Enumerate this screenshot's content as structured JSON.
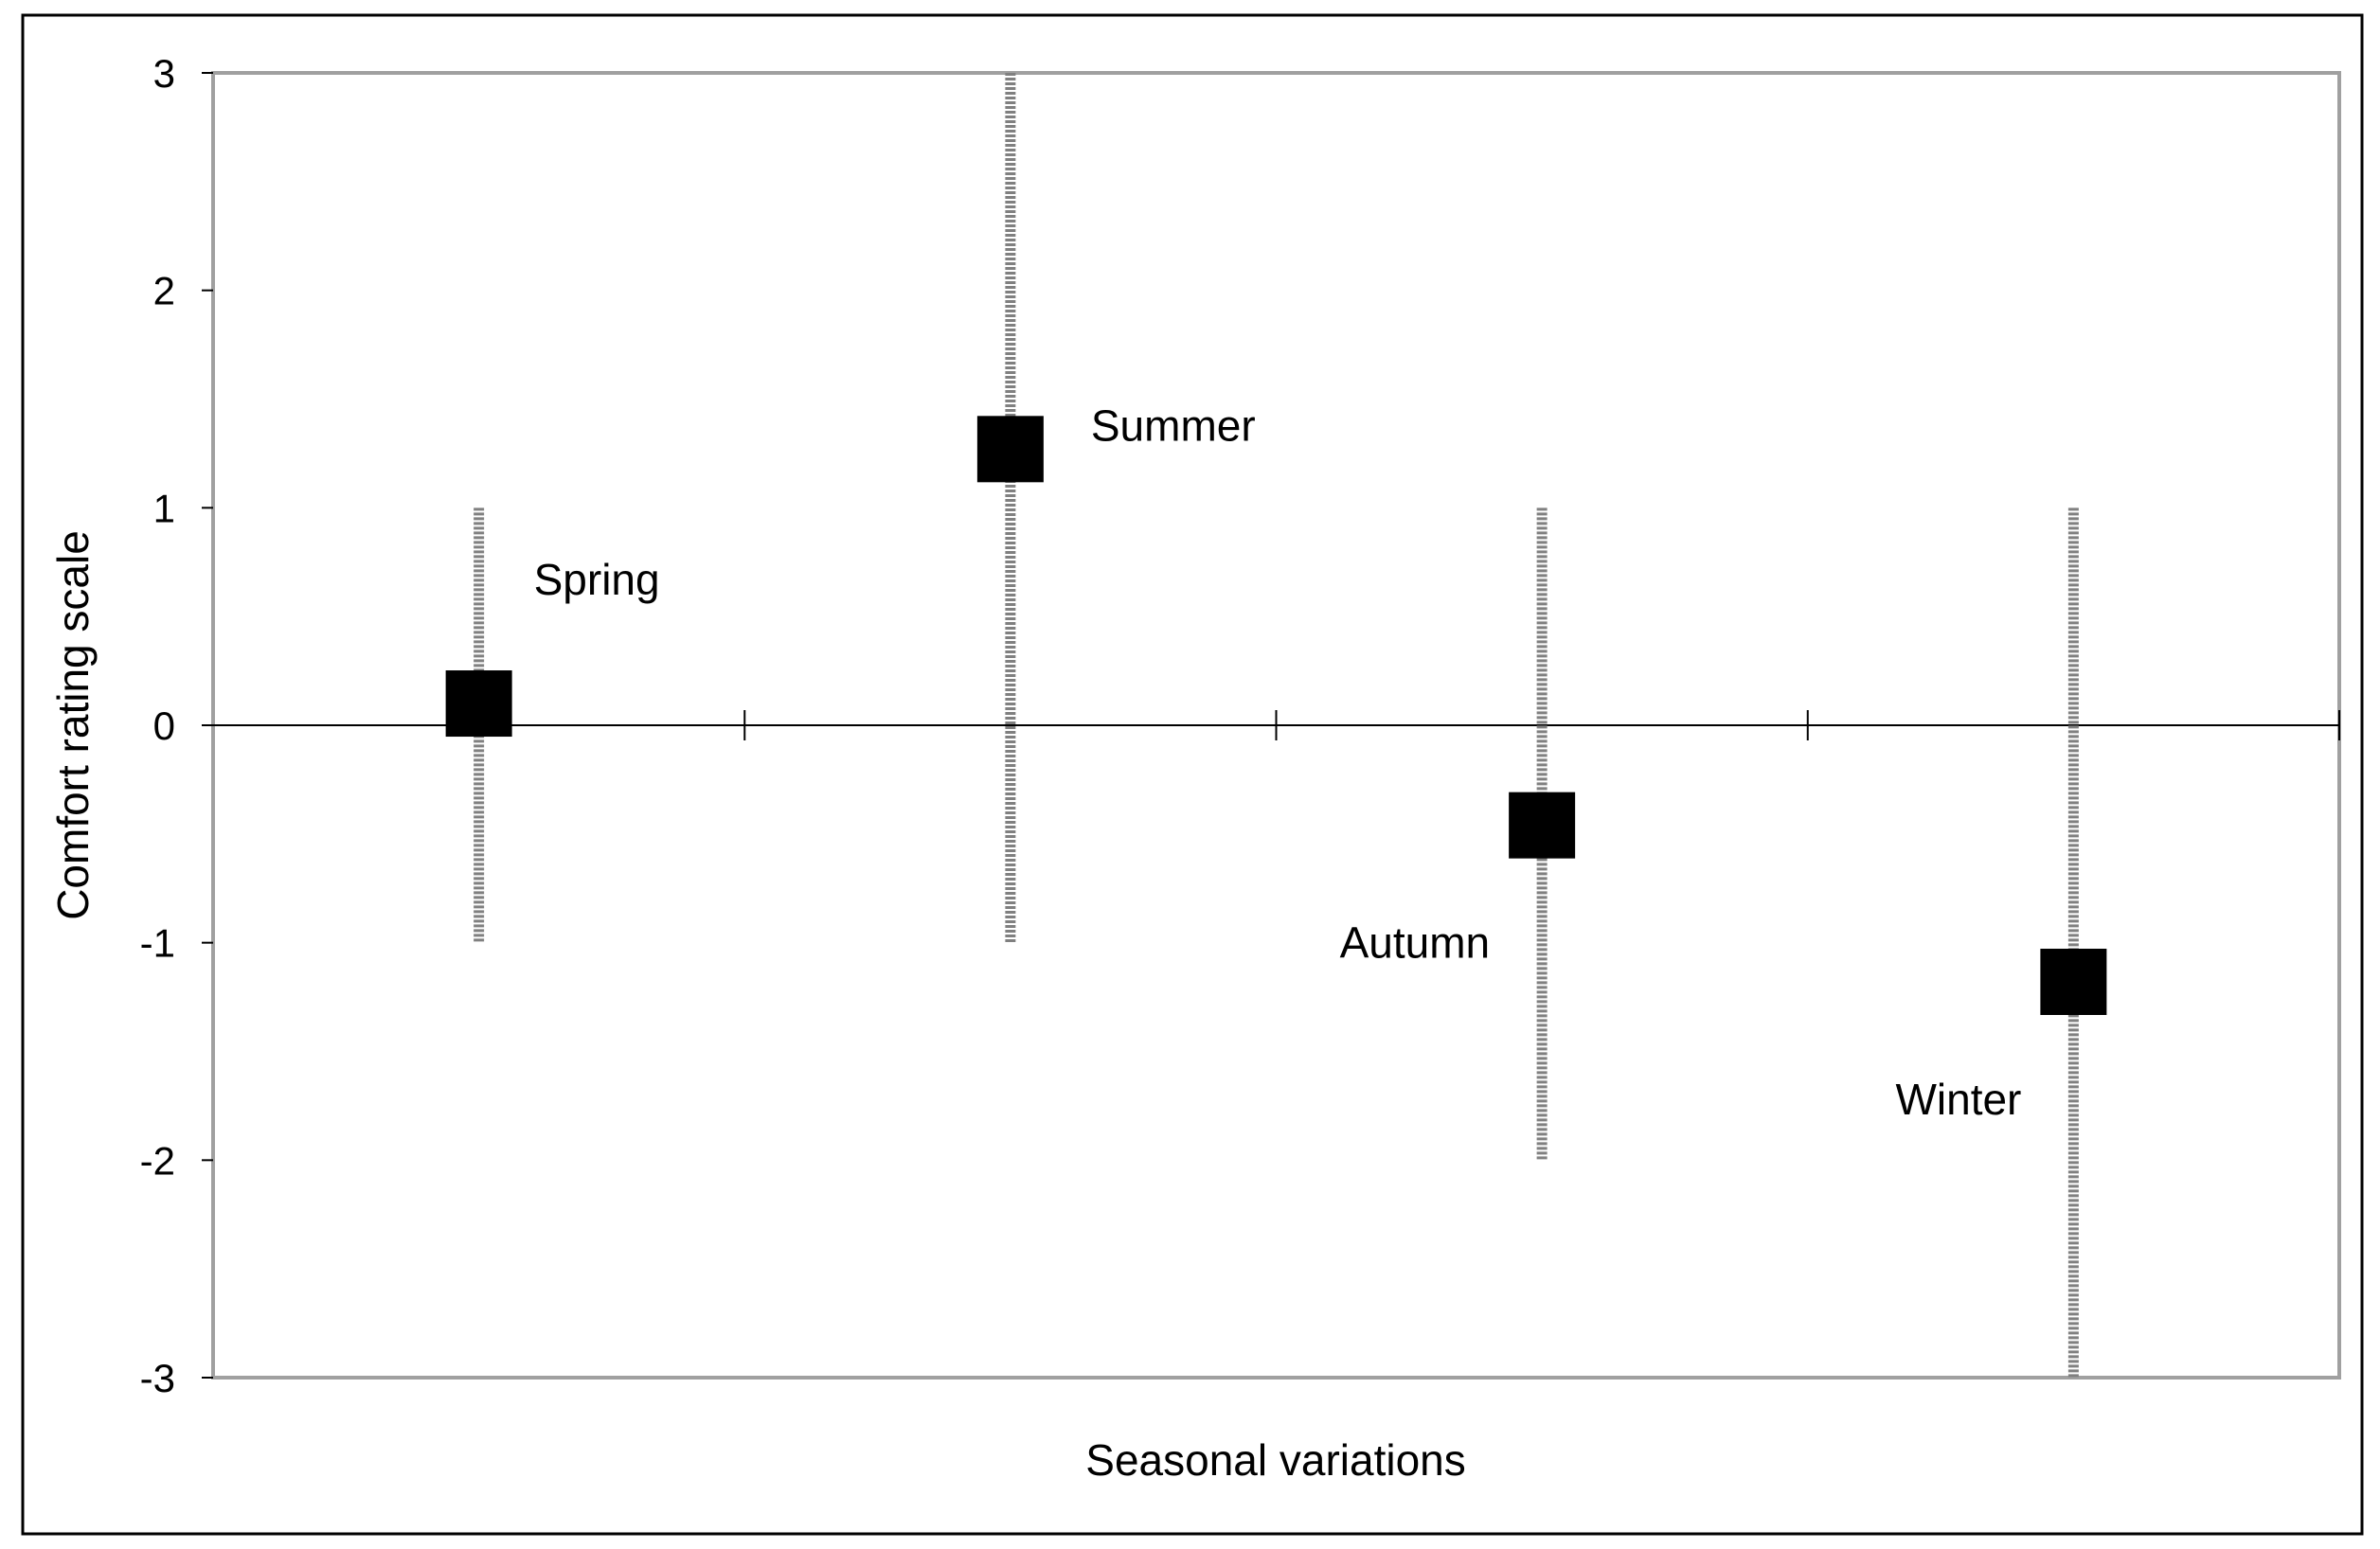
{
  "chart_data": {
    "type": "scatter",
    "title": "",
    "xlabel": "Seasonal variations",
    "ylabel": "Comfort rating scale",
    "ylim": [
      -3,
      3
    ],
    "yticks": [
      "-3",
      "-2",
      "-1",
      "0",
      "1",
      "2",
      "3"
    ],
    "grid": false,
    "legend": "none",
    "categories": [
      "Spring",
      "Summer",
      "Autumn",
      "Winter"
    ],
    "values": [
      0.1,
      1.27,
      -0.46,
      -1.18
    ],
    "error_low": [
      -1,
      -1,
      -2,
      -3
    ],
    "error_high": [
      1,
      3,
      1,
      1
    ],
    "label_positions": [
      "upper-right",
      "right",
      "lower-left",
      "lower-left"
    ],
    "colors": {
      "marker": "#000000",
      "error_bar": "#808080",
      "frame": "#a0a0a0",
      "zero_line": "#000000"
    }
  }
}
